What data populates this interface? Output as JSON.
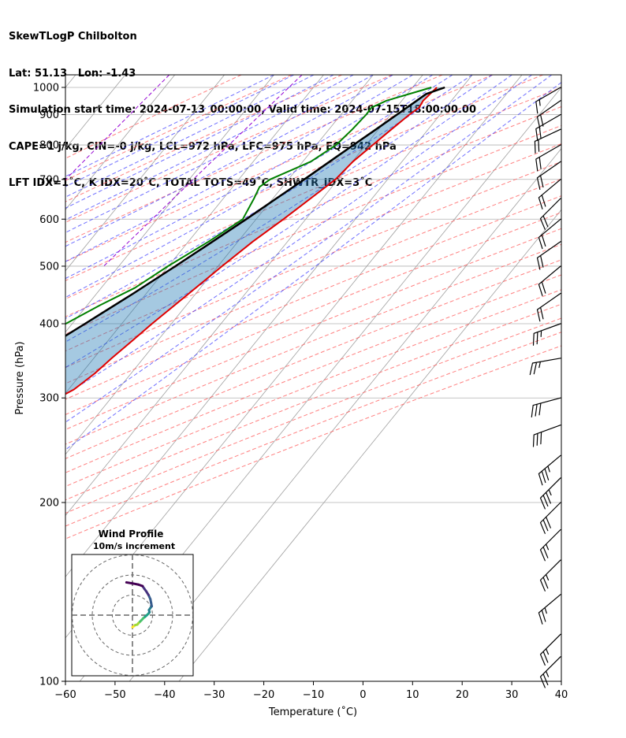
{
  "header": {
    "lines": [
      "SkewTLogP Chilbolton",
      "Lat: 51.13   Lon: -1.43",
      "Simulation start time: 2024-07-13_00:00:00, Valid time: 2024-07-15T18:00:00.00",
      "CAPE=1 j/kg, CIN=-0 j/kg, LCL=972 hPa, LFC=975 hPa, EQ=942 hPa",
      "LFT IDX=1˚C, K IDX=20˚C, TOTAL TOTS=49˚C, SHWTR_IDX=3˚C"
    ]
  },
  "chart_data": [
    {
      "type": "line",
      "subtype": "skew-t log-p",
      "title": "",
      "xlabel": "Temperature (˚C)",
      "ylabel": "Pressure (hPa)",
      "xlim": [
        -60,
        40
      ],
      "ylim": [
        1050,
        100
      ],
      "y_scale": "log",
      "x_ticks": [
        -60,
        -50,
        -40,
        -30,
        -20,
        -10,
        0,
        10,
        20,
        30,
        40
      ],
      "x_tick_labels": [
        "−60",
        "−50",
        "−40",
        "−30",
        "−20",
        "−10",
        "0",
        "10",
        "20",
        "30",
        "40"
      ],
      "y_ticks": [
        100,
        200,
        300,
        400,
        500,
        600,
        700,
        800,
        900,
        1000
      ],
      "y_tick_labels": [
        "100",
        "200",
        "300",
        "400",
        "500",
        "600",
        "700",
        "800",
        "900",
        "1000"
      ],
      "grid": true,
      "series": [
        {
          "role": "temperature",
          "color": "#e00000",
          "points": [
            [
              1000,
              14.9
            ],
            [
              950,
              14.3
            ],
            [
              925,
              14.6
            ],
            [
              900,
              13.8
            ],
            [
              850,
              12.6
            ],
            [
              800,
              11.4
            ],
            [
              750,
              10.1
            ],
            [
              700,
              9.5
            ],
            [
              650,
              7.6
            ],
            [
              600,
              5.5
            ],
            [
              550,
              3.0
            ],
            [
              500,
              0.8
            ],
            [
              450,
              -1.4
            ],
            [
              400,
              -3.9
            ],
            [
              375,
              -5.1
            ],
            [
              350,
              -6.4
            ],
            [
              330,
              -7.3
            ],
            [
              310,
              -8.9
            ],
            [
              300,
              -10.7
            ],
            [
              290,
              -10.8
            ],
            [
              280,
              -9.5
            ],
            [
              260,
              -6.9
            ],
            [
              240,
              -5.7
            ],
            [
              220,
              -5.5
            ],
            [
              200,
              -5.4
            ],
            [
              180,
              -5.6
            ],
            [
              160,
              -7.3
            ],
            [
              140,
              -9.2
            ],
            [
              120,
              -10.8
            ],
            [
              110,
              -9.9
            ],
            [
              105,
              -10.0
            ],
            [
              100,
              -10.6
            ]
          ]
        },
        {
          "role": "dewpoint",
          "color": "#008000",
          "points": [
            [
              1000,
              13.8
            ],
            [
              950,
              6.9
            ],
            [
              925,
              5.0
            ],
            [
              900,
              5.1
            ],
            [
              850,
              4.7
            ],
            [
              800,
              4.0
            ],
            [
              750,
              1.6
            ],
            [
              700,
              -3.7
            ],
            [
              680,
              -4.6
            ],
            [
              650,
              -3.8
            ],
            [
              600,
              -2.7
            ],
            [
              550,
              -5.9
            ],
            [
              500,
              -10.1
            ],
            [
              460,
              -13.2
            ],
            [
              430,
              -17.4
            ],
            [
              400,
              -21.3
            ],
            [
              380,
              -22.0
            ],
            [
              360,
              -20.7
            ],
            [
              330,
              -18.6
            ],
            [
              300,
              -19.1
            ],
            [
              290,
              -19.1
            ],
            [
              260,
              -42.1
            ],
            [
              240,
              -49.7
            ],
            [
              220,
              -56.1
            ],
            [
              200,
              -61.9
            ],
            [
              180,
              -60.6
            ],
            [
              160,
              -64.7
            ],
            [
              140,
              -69.7
            ],
            [
              120,
              -75.4
            ],
            [
              100,
              -82.4
            ]
          ]
        },
        {
          "role": "parcel",
          "color": "#000000",
          "points": [
            [
              1000,
              16.5
            ],
            [
              975,
              13.8
            ],
            [
              950,
              13.0
            ],
            [
              900,
              11.3
            ],
            [
              850,
              9.5
            ],
            [
              800,
              7.5
            ],
            [
              750,
              5.4
            ],
            [
              700,
              3.2
            ],
            [
              650,
              0.7
            ],
            [
              600,
              -2.0
            ],
            [
              550,
              -5.1
            ],
            [
              500,
              -8.6
            ],
            [
              450,
              -12.6
            ],
            [
              400,
              -17.4
            ],
            [
              350,
              -23.0
            ],
            [
              300,
              -29.9
            ],
            [
              250,
              -38.4
            ],
            [
              200,
              -49.4
            ],
            [
              180,
              -54.8
            ],
            [
              160,
              -60.8
            ],
            [
              140,
              -67.6
            ],
            [
              120,
              -75.6
            ],
            [
              100,
              -85.0
            ]
          ]
        }
      ],
      "shading": [
        {
          "between": [
            "parcel",
            "temperature"
          ],
          "color": "#1f77b4",
          "opacity": 0.4
        }
      ],
      "background_lines": {
        "isotherms_color": "#a0a0a0",
        "dry_adiabats_color": "#ff5555",
        "moist_adiabats_color": "#3333ff",
        "mixing_ratio_color": "#9400d3"
      },
      "wind_barbs": [
        {
          "p": 1000,
          "dir": 240,
          "kt": 15
        },
        {
          "p": 950,
          "dir": 235,
          "kt": 18
        },
        {
          "p": 900,
          "dir": 240,
          "kt": 20
        },
        {
          "p": 850,
          "dir": 245,
          "kt": 22
        },
        {
          "p": 800,
          "dir": 240,
          "kt": 22
        },
        {
          "p": 750,
          "dir": 235,
          "kt": 20
        },
        {
          "p": 700,
          "dir": 230,
          "kt": 20
        },
        {
          "p": 650,
          "dir": 225,
          "kt": 20
        },
        {
          "p": 600,
          "dir": 230,
          "kt": 22
        },
        {
          "p": 550,
          "dir": 235,
          "kt": 22
        },
        {
          "p": 500,
          "dir": 230,
          "kt": 20
        },
        {
          "p": 450,
          "dir": 235,
          "kt": 20
        },
        {
          "p": 400,
          "dir": 250,
          "kt": 25
        },
        {
          "p": 350,
          "dir": 260,
          "kt": 25
        },
        {
          "p": 300,
          "dir": 255,
          "kt": 30
        },
        {
          "p": 270,
          "dir": 250,
          "kt": 30
        },
        {
          "p": 240,
          "dir": 230,
          "kt": 35
        },
        {
          "p": 220,
          "dir": 225,
          "kt": 35
        },
        {
          "p": 200,
          "dir": 225,
          "kt": 30
        },
        {
          "p": 180,
          "dir": 225,
          "kt": 25
        },
        {
          "p": 160,
          "dir": 225,
          "kt": 25
        },
        {
          "p": 140,
          "dir": 230,
          "kt": 25
        },
        {
          "p": 120,
          "dir": 225,
          "kt": 25
        },
        {
          "p": 110,
          "dir": 225,
          "kt": 25
        }
      ]
    },
    {
      "type": "line",
      "subtype": "hodograph",
      "title": "Wind Profile",
      "subtitle": "10m/s increment",
      "rings_ms": [
        10,
        20,
        30
      ],
      "colormap": "viridis",
      "points": [
        [
          0.0,
          -6.0
        ],
        [
          0.7,
          -5.5
        ],
        [
          1.3,
          -5.0
        ],
        [
          2.4,
          -4.7
        ],
        [
          3.0,
          -4.0
        ],
        [
          3.8,
          -3.2
        ],
        [
          4.6,
          -2.4
        ],
        [
          5.4,
          -1.5
        ],
        [
          6.3,
          -0.8
        ],
        [
          7.2,
          0.0
        ],
        [
          8.0,
          0.8
        ],
        [
          8.5,
          1.5
        ],
        [
          8.2,
          2.5
        ],
        [
          8.8,
          3.4
        ],
        [
          9.6,
          4.4
        ],
        [
          9.3,
          6.0
        ],
        [
          8.9,
          8.0
        ],
        [
          8.0,
          10.0
        ],
        [
          6.9,
          11.8
        ],
        [
          6.0,
          13.0
        ],
        [
          5.0,
          14.5
        ],
        [
          3.0,
          15.2
        ],
        [
          0.0,
          15.8
        ],
        [
          -3.0,
          16.3
        ]
      ]
    }
  ]
}
